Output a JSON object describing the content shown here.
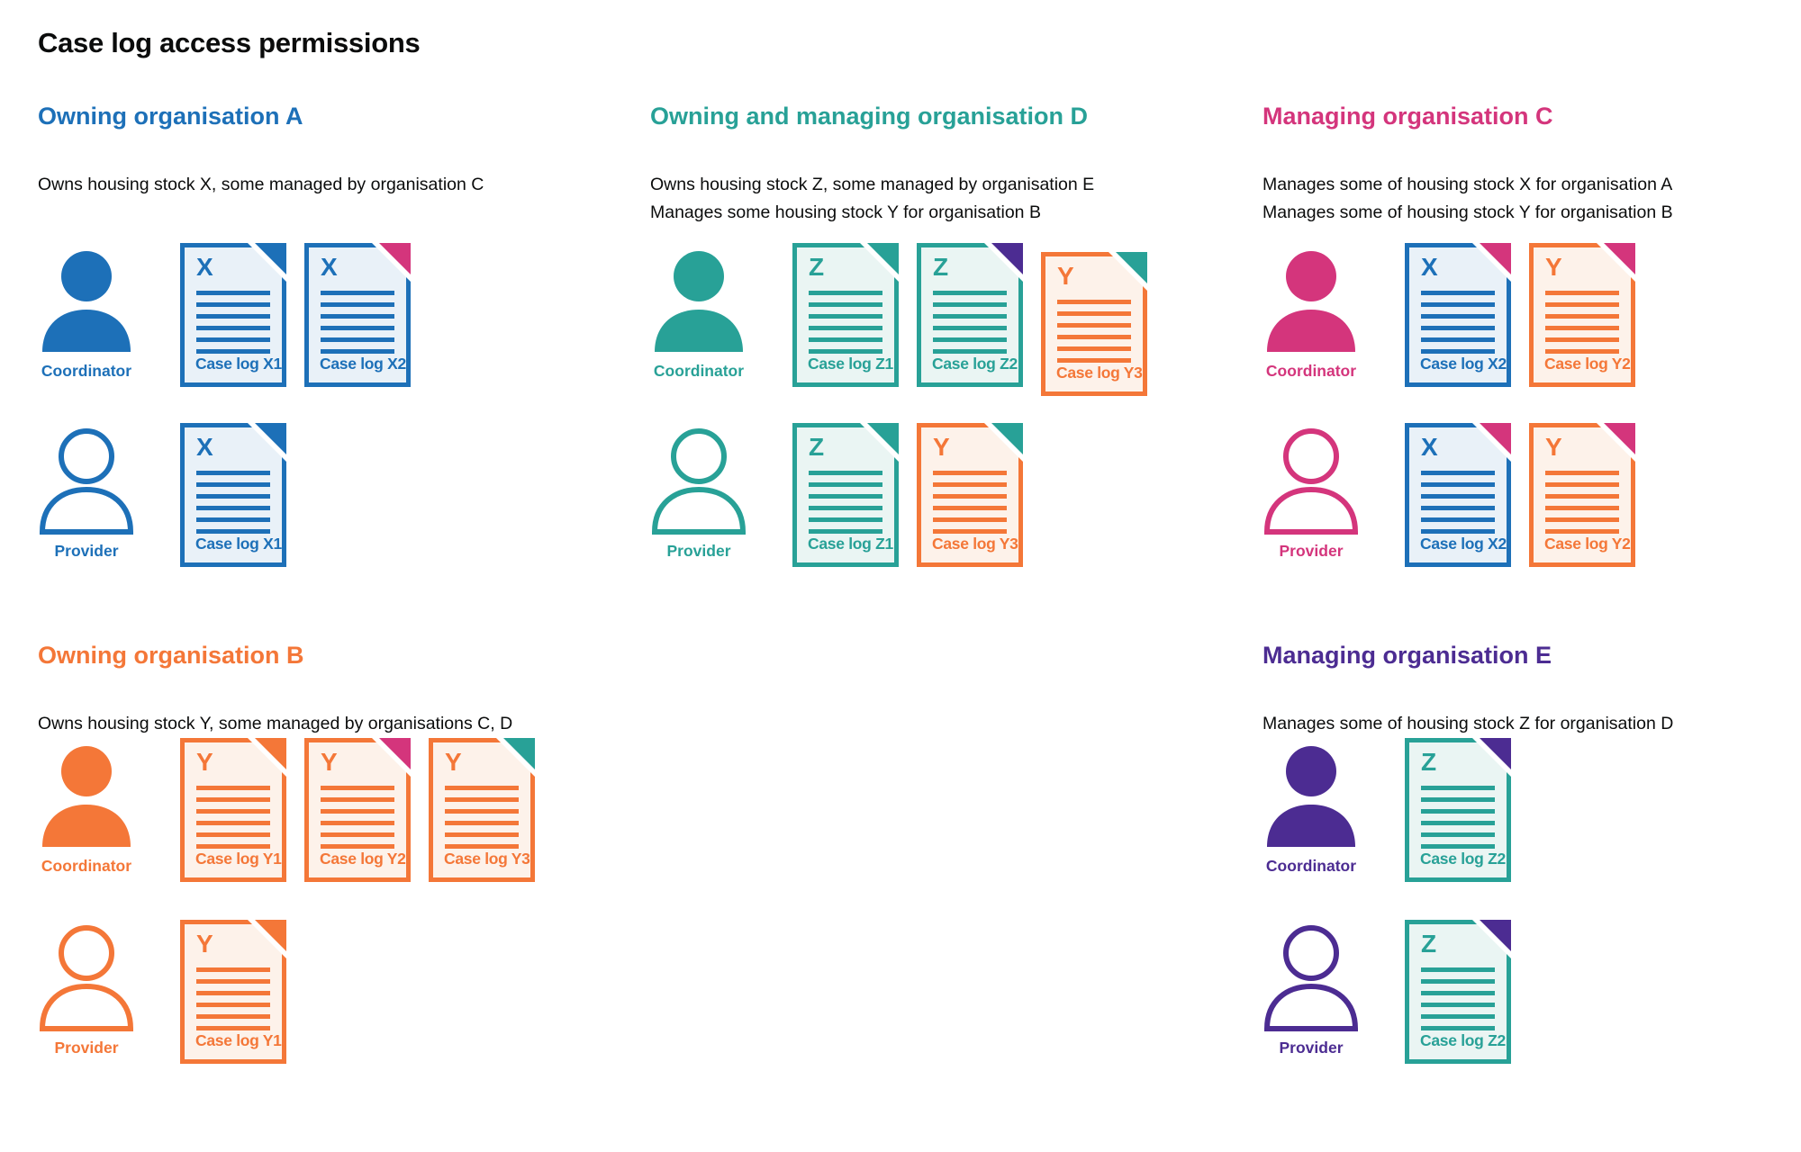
{
  "title": "Case log access permissions",
  "palette": {
    "blue": {
      "main": "#1d70b8",
      "tint": "#e9f1f8"
    },
    "teal": {
      "main": "#28a197",
      "tint": "#eaf5f3"
    },
    "orange": {
      "main": "#f47738",
      "tint": "#fdf2ea"
    },
    "pink": {
      "main": "#d4357c",
      "tint": "#fbeaf2"
    },
    "purple": {
      "main": "#4c2c92",
      "tint": "#ece8f4"
    },
    "text": "#0b0c0c"
  },
  "sections": [
    {
      "id": "org-a",
      "color": "blue",
      "heading": "Owning organisation A",
      "description": [
        "Owns housing stock X, some managed by organisation C"
      ],
      "rows": [
        {
          "role": "Coordinator",
          "person_style": "filled",
          "docs": [
            {
              "letter": "X",
              "label": "Case log X1",
              "color": "blue",
              "fold": "blue"
            },
            {
              "letter": "X",
              "label": "Case log X2",
              "color": "blue",
              "fold": "pink"
            }
          ]
        },
        {
          "role": "Provider",
          "person_style": "outline",
          "docs": [
            {
              "letter": "X",
              "label": "Case log X1",
              "color": "blue",
              "fold": "blue"
            }
          ]
        }
      ]
    },
    {
      "id": "org-d",
      "color": "teal",
      "heading": "Owning and managing organisation D",
      "description": [
        "Owns housing stock Z, some managed by organisation E",
        "Manages some housing stock Y for organisation B"
      ],
      "rows": [
        {
          "role": "Coordinator",
          "person_style": "filled",
          "docs": [
            {
              "letter": "Z",
              "label": "Case log Z1",
              "color": "teal",
              "fold": "teal"
            },
            {
              "letter": "Z",
              "label": "Case log Z2",
              "color": "teal",
              "fold": "purple"
            },
            {
              "letter": "Y",
              "label": "Case log Y3",
              "color": "orange",
              "fold": "teal",
              "offset_down": true
            }
          ]
        },
        {
          "role": "Provider",
          "person_style": "outline",
          "docs": [
            {
              "letter": "Z",
              "label": "Case log Z1",
              "color": "teal",
              "fold": "teal"
            },
            {
              "letter": "Y",
              "label": "Case log Y3",
              "color": "orange",
              "fold": "teal"
            }
          ]
        }
      ]
    },
    {
      "id": "org-c",
      "color": "pink",
      "heading": "Managing organisation C",
      "description": [
        "Manages some of housing stock X for organisation A",
        "Manages some of housing stock Y for organisation B"
      ],
      "rows": [
        {
          "role": "Coordinator",
          "person_style": "filled",
          "docs": [
            {
              "letter": "X",
              "label": "Case log X2",
              "color": "blue",
              "fold": "pink"
            },
            {
              "letter": "Y",
              "label": "Case log Y2",
              "color": "orange",
              "fold": "pink"
            }
          ]
        },
        {
          "role": "Provider",
          "person_style": "outline",
          "docs": [
            {
              "letter": "X",
              "label": "Case log X2",
              "color": "blue",
              "fold": "pink"
            },
            {
              "letter": "Y",
              "label": "Case log Y2",
              "color": "orange",
              "fold": "pink"
            }
          ]
        }
      ]
    },
    {
      "id": "org-b",
      "color": "orange",
      "heading": "Owning organisation B",
      "description": [
        "Owns housing stock Y, some managed by organisations C, D"
      ],
      "rows": [
        {
          "role": "Coordinator",
          "person_style": "filled",
          "docs": [
            {
              "letter": "Y",
              "label": "Case log Y1",
              "color": "orange",
              "fold": "orange"
            },
            {
              "letter": "Y",
              "label": "Case log Y2",
              "color": "orange",
              "fold": "pink"
            },
            {
              "letter": "Y",
              "label": "Case log Y3",
              "color": "orange",
              "fold": "teal"
            }
          ]
        },
        {
          "role": "Provider",
          "person_style": "outline",
          "docs": [
            {
              "letter": "Y",
              "label": "Case log Y1",
              "color": "orange",
              "fold": "orange"
            }
          ]
        }
      ]
    },
    {
      "id": "org-e",
      "color": "purple",
      "heading": "Managing organisation E",
      "description": [
        "Manages some of housing stock Z for organisation D"
      ],
      "rows": [
        {
          "role": "Coordinator",
          "person_style": "filled",
          "docs": [
            {
              "letter": "Z",
              "label": "Case log Z2",
              "color": "teal",
              "fold": "purple"
            }
          ]
        },
        {
          "role": "Provider",
          "person_style": "outline",
          "docs": [
            {
              "letter": "Z",
              "label": "Case log Z2",
              "color": "teal",
              "fold": "purple"
            }
          ]
        }
      ]
    }
  ]
}
